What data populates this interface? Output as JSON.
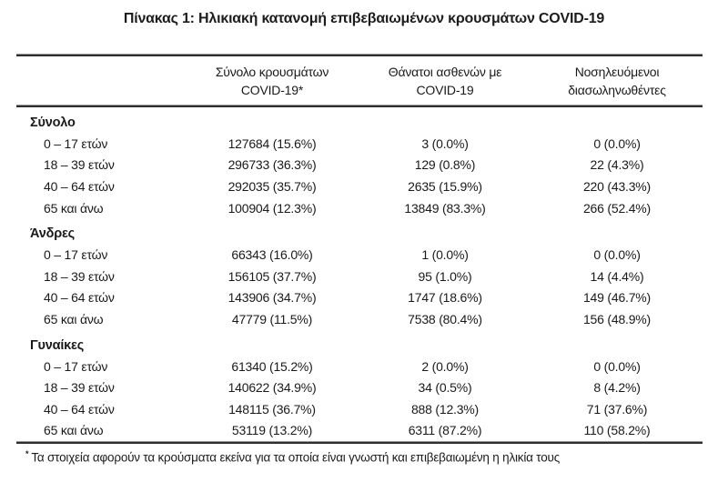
{
  "title": "Πίνακας 1: Ηλικιακή κατανομή επιβεβαιωμένων κρουσμάτων COVID-19",
  "table": {
    "columns": [
      {
        "line1": "Σύνολο κρουσμάτων",
        "line2": "COVID-19*"
      },
      {
        "line1": "Θάνατοι ασθενών με",
        "line2": "COVID-19"
      },
      {
        "line1": "Νοσηλευόμενοι",
        "line2": "διασωληνωθέντες"
      }
    ],
    "sections": [
      {
        "name": "Σύνολο",
        "rows": [
          {
            "label": "0 – 17 ετών",
            "cases": "127684 (15.6%)",
            "deaths": "3 (0.0%)",
            "intubated": "0 (0.0%)"
          },
          {
            "label": "18 – 39 ετών",
            "cases": "296733 (36.3%)",
            "deaths": "129 (0.8%)",
            "intubated": "22 (4.3%)"
          },
          {
            "label": "40 – 64 ετών",
            "cases": "292035 (35.7%)",
            "deaths": "2635 (15.9%)",
            "intubated": "220 (43.3%)"
          },
          {
            "label": "65 και άνω",
            "cases": "100904 (12.3%)",
            "deaths": "13849 (83.3%)",
            "intubated": "266 (52.4%)"
          }
        ]
      },
      {
        "name": "Άνδρες",
        "rows": [
          {
            "label": "0 – 17 ετών",
            "cases": "66343 (16.0%)",
            "deaths": "1 (0.0%)",
            "intubated": "0 (0.0%)"
          },
          {
            "label": "18 – 39 ετών",
            "cases": "156105 (37.7%)",
            "deaths": "95 (1.0%)",
            "intubated": "14 (4.4%)"
          },
          {
            "label": "40 – 64 ετών",
            "cases": "143906 (34.7%)",
            "deaths": "1747 (18.6%)",
            "intubated": "149 (46.7%)"
          },
          {
            "label": "65 και άνω",
            "cases": "47779 (11.5%)",
            "deaths": "7538 (80.4%)",
            "intubated": "156 (48.9%)"
          }
        ]
      },
      {
        "name": "Γυναίκες",
        "rows": [
          {
            "label": "0 – 17 ετών",
            "cases": "61340 (15.2%)",
            "deaths": "2 (0.0%)",
            "intubated": "0 (0.0%)"
          },
          {
            "label": "18 – 39 ετών",
            "cases": "140622 (34.9%)",
            "deaths": "34 (0.5%)",
            "intubated": "8 (4.2%)"
          },
          {
            "label": "40 – 64 ετών",
            "cases": "148115 (36.7%)",
            "deaths": "888 (12.3%)",
            "intubated": "71 (37.6%)"
          },
          {
            "label": "65 και άνω",
            "cases": "53119 (13.2%)",
            "deaths": "6311 (87.2%)",
            "intubated": "110 (58.2%)"
          }
        ]
      }
    ]
  },
  "footnote": {
    "marker": "*",
    "text": "Τα στοιχεία αφορούν τα κρούσματα εκείνα για τα οποία είναι γνωστή και επιβεβαιωμένη η ηλικία τους"
  },
  "colors": {
    "text": "#1a1a1a",
    "rule_dark": "#2e2e2e",
    "rule_light": "#969696",
    "background": "#ffffff"
  }
}
